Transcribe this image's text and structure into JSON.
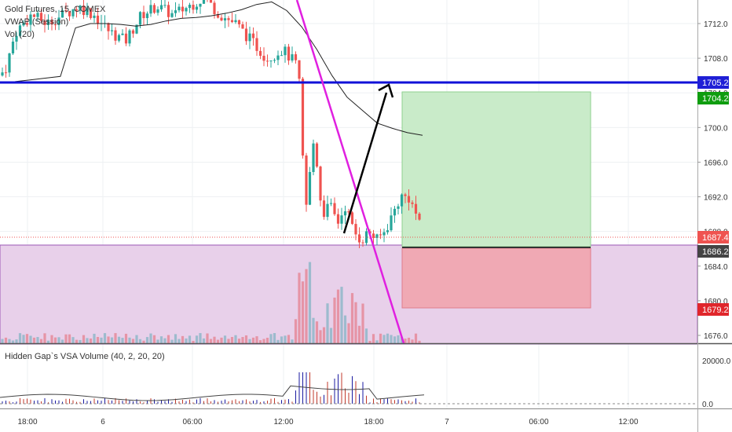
{
  "legend": {
    "title": "Gold Futures, 15, COMEX",
    "vwap": "VWAP (Session)",
    "vol": "Vol (20)"
  },
  "indicator": {
    "label": "Hidden Gap`s VSA Volume (40, 2, 20, 20)",
    "ticks": [
      "20000.0",
      "0.0"
    ]
  },
  "price_axis": {
    "ticks": [
      "1712.0",
      "1708.0",
      "1704.0",
      "1700.0",
      "1696.0",
      "1692.0",
      "1688.0",
      "1684.0",
      "1680.0",
      "1676.0"
    ]
  },
  "time_axis": {
    "labels": [
      "18:00",
      "6",
      "06:00",
      "12:00",
      "18:00",
      "7",
      "06:00",
      "12:00"
    ]
  },
  "price_tags": [
    {
      "label": "1705.2",
      "color": "#1f1fd6"
    },
    {
      "label": "1704.2",
      "color": "#0f9d0f"
    },
    {
      "label": "1687.4",
      "color": "#ef5350"
    },
    {
      "label": "1686.2",
      "color": "#444444"
    },
    {
      "label": "1679.2",
      "color": "#e0262b"
    }
  ],
  "colors": {
    "up": "#26a69a",
    "down": "#ef5350",
    "vwap": "#222222",
    "resistance": "#1010d8",
    "trendline": "#e020e0",
    "zone_fill": "#e8d0ea",
    "profit_fill": "#c9ebc9",
    "stop_fill": "#f0a9b4"
  },
  "chart_data": {
    "type": "candlestick",
    "title": "Gold Futures, 15, COMEX",
    "y_range": [
      1675,
      1715
    ],
    "levels": {
      "resistance": 1705.2,
      "target": 1704.2,
      "last_price": 1687.4,
      "entry": 1686.2,
      "stop": 1679.2
    },
    "vwap": [
      1705.2,
      1705.3,
      1705.5,
      1705.7,
      1705.9,
      1711.5,
      1712.0,
      1712.0,
      1711.9,
      1711.7,
      1711.9,
      1712.3,
      1712.6,
      1712.7,
      1712.9,
      1713.2,
      1713.6,
      1714.2,
      1714.5,
      1713.5,
      1711.6,
      1709.0,
      1706.0,
      1703.5,
      1702.0,
      1700.5,
      1699.9,
      1699.4,
      1699.1
    ]
  }
}
